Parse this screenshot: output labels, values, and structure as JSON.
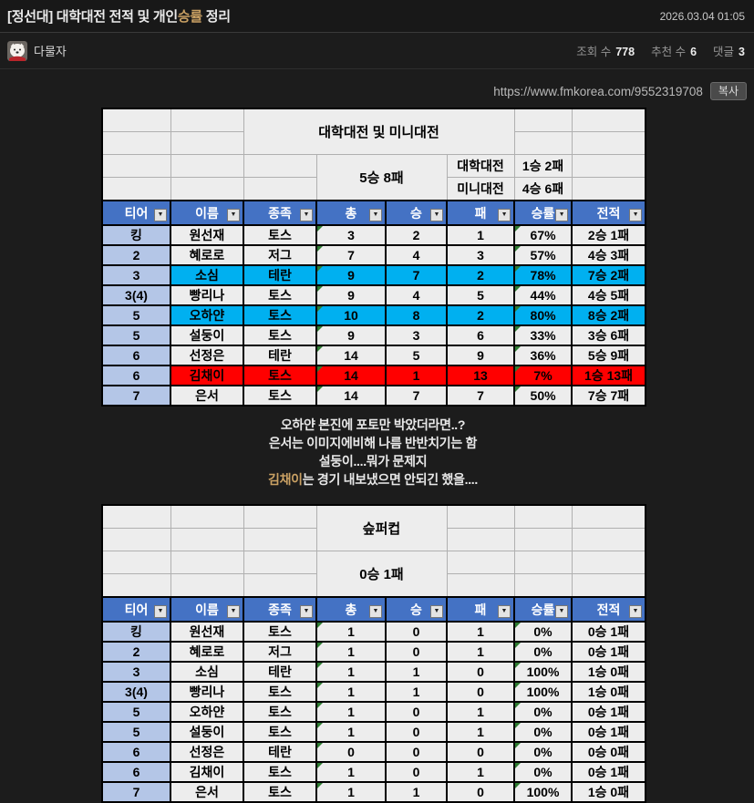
{
  "header": {
    "title_pre": "[정선대] 대학대전 전적 및 개인",
    "title_gold": "승률",
    "title_post": " 정리",
    "date": "2026.03.04 01:05"
  },
  "author": {
    "name": "다물자",
    "avatar_icon": "white-dog-avatar"
  },
  "meta": {
    "views_label": "조회 수",
    "views": "778",
    "votes_label": "추천 수",
    "votes": "6",
    "comments_label": "댓글",
    "comments": "3"
  },
  "share": {
    "url": "https://www.fmkorea.com/9552319708",
    "copy_label": "복사"
  },
  "colors": {
    "accent_gold": "#c9a063",
    "header_blue": "#4472c4",
    "tier_bg": "#b4c6e7",
    "highlight_cyan": "#00b0f0",
    "highlight_red": "#ff0000",
    "cell_bg": "#ededed",
    "error_triangle_green": "#2e7d32"
  },
  "table1": {
    "title": "대학대전 및 미니대전",
    "overall": "5승 8패",
    "breakdown": [
      {
        "label": "대학대전",
        "value": "1승 2패"
      },
      {
        "label": "미니대전",
        "value": "4승 6패"
      }
    ],
    "headers": [
      "티어",
      "이름",
      "종족",
      "총",
      "승",
      "패",
      "승률",
      "전적"
    ],
    "rows": [
      {
        "tier": "킹",
        "name": "원선재",
        "race": "토스",
        "total": "3",
        "win": "2",
        "loss": "1",
        "rate": "67%",
        "record": "2승 1패",
        "hl": "none"
      },
      {
        "tier": "2",
        "name": "혜로로",
        "race": "저그",
        "total": "7",
        "win": "4",
        "loss": "3",
        "rate": "57%",
        "record": "4승 3패",
        "hl": "none"
      },
      {
        "tier": "3",
        "name": "소심",
        "race": "테란",
        "total": "9",
        "win": "7",
        "loss": "2",
        "rate": "78%",
        "record": "7승 2패",
        "hl": "cyan"
      },
      {
        "tier": "3(4)",
        "name": "빵리나",
        "race": "토스",
        "total": "9",
        "win": "4",
        "loss": "5",
        "rate": "44%",
        "record": "4승 5패",
        "hl": "none"
      },
      {
        "tier": "5",
        "name": "오하얀",
        "race": "토스",
        "total": "10",
        "win": "8",
        "loss": "2",
        "rate": "80%",
        "record": "8승 2패",
        "hl": "cyan"
      },
      {
        "tier": "5",
        "name": "설둥이",
        "race": "토스",
        "total": "9",
        "win": "3",
        "loss": "6",
        "rate": "33%",
        "record": "3승 6패",
        "hl": "none"
      },
      {
        "tier": "6",
        "name": "선정은",
        "race": "테란",
        "total": "14",
        "win": "5",
        "loss": "9",
        "rate": "36%",
        "record": "5승 9패",
        "hl": "none"
      },
      {
        "tier": "6",
        "name": "김채이",
        "race": "토스",
        "total": "14",
        "win": "1",
        "loss": "13",
        "rate": "7%",
        "record": "1승 13패",
        "hl": "red"
      },
      {
        "tier": "7",
        "name": "은서",
        "race": "토스",
        "total": "14",
        "win": "7",
        "loss": "7",
        "rate": "50%",
        "record": "7승 7패",
        "hl": "none"
      }
    ]
  },
  "commentary": {
    "lines": [
      {
        "pre": "오하얀 본진에 포토만 박았더라면..?",
        "gold": "",
        "post": ""
      },
      {
        "pre": "은서는 이미지에비해 나름 반반치기는 함",
        "gold": "",
        "post": ""
      },
      {
        "pre": "설둥이....뭐가 문제지",
        "gold": "",
        "post": ""
      },
      {
        "pre": "",
        "gold": "김채이",
        "post": "는 경기 내보냈으면 안되긴 했을...."
      }
    ]
  },
  "table2": {
    "title": "슾퍼컵",
    "overall": "0승 1패",
    "headers": [
      "티어",
      "이름",
      "종족",
      "총",
      "승",
      "패",
      "승률",
      "전적"
    ],
    "rows": [
      {
        "tier": "킹",
        "name": "원선재",
        "race": "토스",
        "total": "1",
        "win": "0",
        "loss": "1",
        "rate": "0%",
        "record": "0승 1패",
        "hl": "none"
      },
      {
        "tier": "2",
        "name": "혜로로",
        "race": "저그",
        "total": "1",
        "win": "0",
        "loss": "1",
        "rate": "0%",
        "record": "0승 1패",
        "hl": "none"
      },
      {
        "tier": "3",
        "name": "소심",
        "race": "테란",
        "total": "1",
        "win": "1",
        "loss": "0",
        "rate": "100%",
        "record": "1승 0패",
        "hl": "none"
      },
      {
        "tier": "3(4)",
        "name": "빵리나",
        "race": "토스",
        "total": "1",
        "win": "1",
        "loss": "0",
        "rate": "100%",
        "record": "1승 0패",
        "hl": "none"
      },
      {
        "tier": "5",
        "name": "오하얀",
        "race": "토스",
        "total": "1",
        "win": "0",
        "loss": "1",
        "rate": "0%",
        "record": "0승 1패",
        "hl": "none"
      },
      {
        "tier": "5",
        "name": "설둥이",
        "race": "토스",
        "total": "1",
        "win": "0",
        "loss": "1",
        "rate": "0%",
        "record": "0승 1패",
        "hl": "none"
      },
      {
        "tier": "6",
        "name": "선정은",
        "race": "테란",
        "total": "0",
        "win": "0",
        "loss": "0",
        "rate": "0%",
        "record": "0승 0패",
        "hl": "none"
      },
      {
        "tier": "6",
        "name": "김채이",
        "race": "토스",
        "total": "1",
        "win": "0",
        "loss": "1",
        "rate": "0%",
        "record": "0승 1패",
        "hl": "none"
      },
      {
        "tier": "7",
        "name": "은서",
        "race": "토스",
        "total": "1",
        "win": "1",
        "loss": "0",
        "rate": "100%",
        "record": "1승 0패",
        "hl": "none"
      }
    ]
  }
}
